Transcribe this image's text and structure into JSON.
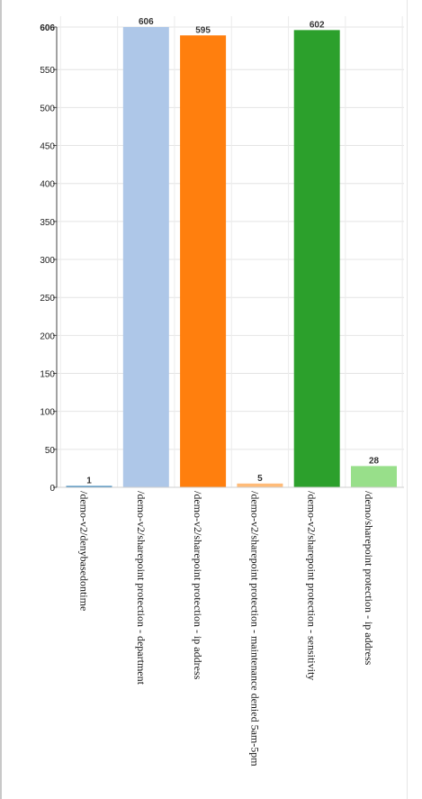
{
  "chart_data": {
    "type": "bar",
    "categories": [
      "/demo-v2/denybasedontime",
      "/demo-v2/sharepoint protection - department",
      "/demo-v2/sharepoint protection - ip address",
      "/demo-v2/sharepoint protection - maintenance denied 5am-5pm",
      "/demo-v2/sharepoint protection - sensitivity",
      "/demo/sharepoint protection - ip address"
    ],
    "values": [
      1,
      606,
      595,
      5,
      602,
      28
    ],
    "colors": [
      "#1f77b4",
      "#aec7e8",
      "#ff7f0e",
      "#ffbb78",
      "#2ca02c",
      "#98df8a"
    ],
    "yticks": [
      0,
      50,
      100,
      150,
      200,
      250,
      300,
      350,
      400,
      450,
      500,
      550,
      606
    ],
    "ylim": [
      0,
      606
    ],
    "grid": true,
    "title": "",
    "xlabel": "",
    "ylabel": ""
  }
}
